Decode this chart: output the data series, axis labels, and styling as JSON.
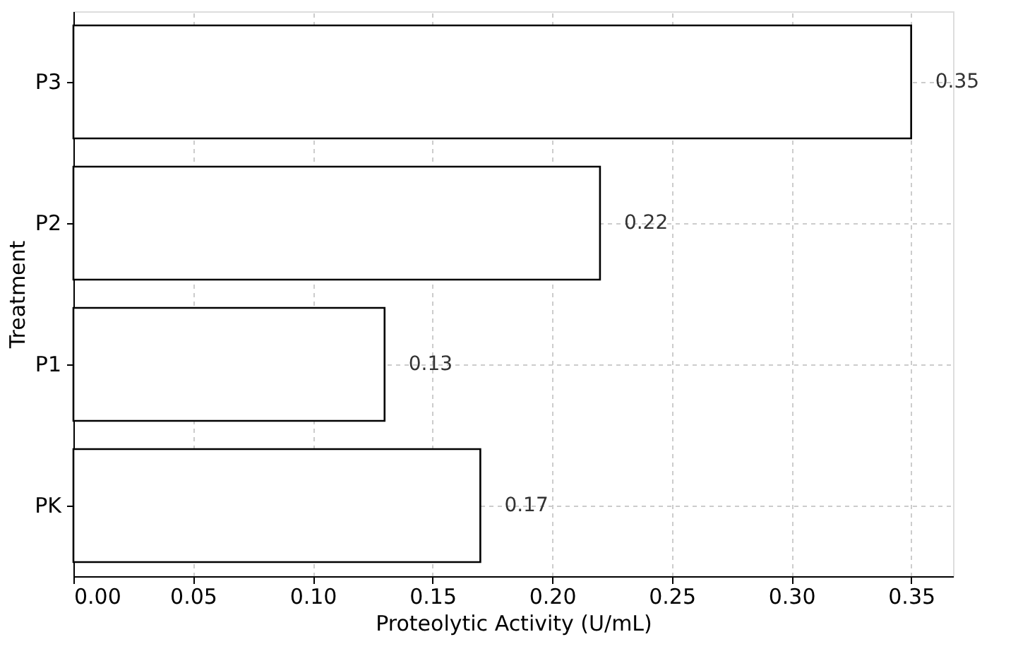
{
  "chart_data": {
    "type": "bar",
    "orientation": "horizontal",
    "xlabel": "Proteolytic Activity (U/mL)",
    "ylabel": "Treatment",
    "categories": [
      "P3",
      "P2",
      "P1",
      "PK"
    ],
    "values": [
      0.35,
      0.22,
      0.13,
      0.17
    ],
    "color": "#ffffff",
    "xlim": [
      0,
      0.3675
    ],
    "xticks": [
      {
        "value": 0,
        "label": "0.00"
      },
      {
        "value": 0.05,
        "label": "0.05"
      },
      {
        "value": 0.1,
        "label": "0.10"
      },
      {
        "value": 0.15,
        "label": "0.15"
      },
      {
        "value": 0.2,
        "label": "0.20"
      },
      {
        "value": 0.25,
        "label": "0.25"
      },
      {
        "value": 0.3,
        "label": "0.30"
      },
      {
        "value": 0.35,
        "label": "0.35"
      }
    ],
    "grid": true,
    "data_labels": true
  }
}
